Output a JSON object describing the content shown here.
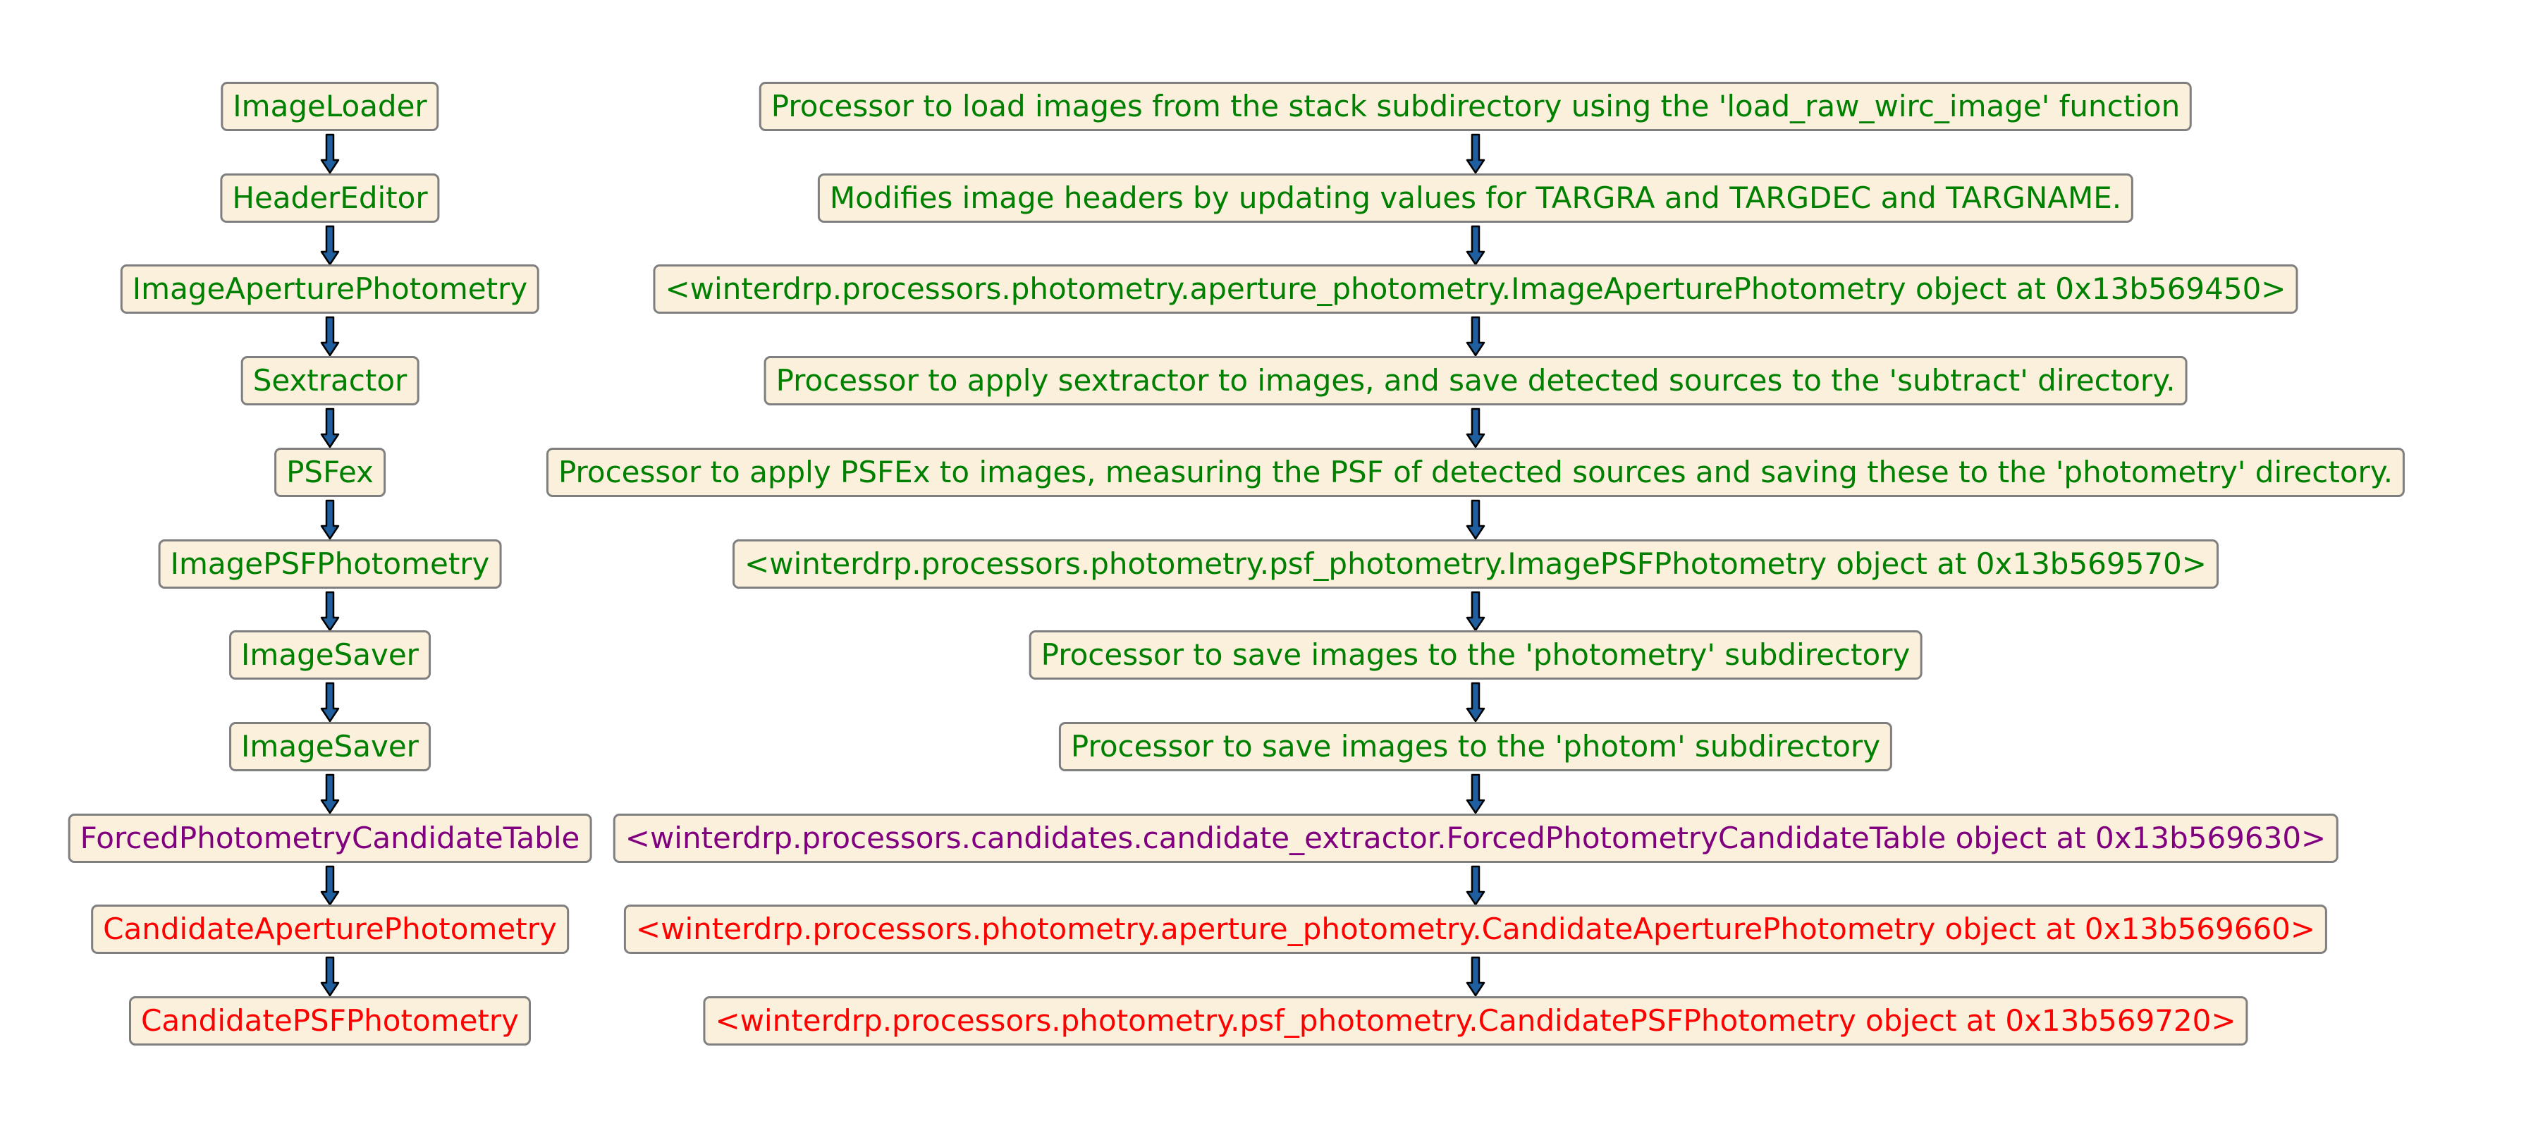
{
  "colors": {
    "green": "#008000",
    "purple": "#800080",
    "red": "#ff0000",
    "node_fill": "#faf0dc",
    "node_border": "#7f7f7f",
    "arrow_fill": "#1f5f9f"
  },
  "steps": [
    {
      "name": "ImageLoader",
      "description": "Processor to load images from the stack subdirectory using the 'load_raw_wirc_image' function",
      "color": "green"
    },
    {
      "name": "HeaderEditor",
      "description": "Modifies image headers by updating values for TARGRA and TARGDEC and TARGNAME.",
      "color": "green"
    },
    {
      "name": "ImageAperturePhotometry",
      "description": "<winterdrp.processors.photometry.aperture_photometry.ImageAperturePhotometry object at 0x13b569450>",
      "color": "green"
    },
    {
      "name": "Sextractor",
      "description": "Processor to apply sextractor to images, and save detected sources to the 'subtract' directory.",
      "color": "green"
    },
    {
      "name": "PSFex",
      "description": "Processor to apply PSFEx to images, measuring the PSF of detected sources and saving these to the 'photometry' directory.",
      "color": "green"
    },
    {
      "name": "ImagePSFPhotometry",
      "description": "<winterdrp.processors.photometry.psf_photometry.ImagePSFPhotometry object at 0x13b569570>",
      "color": "green"
    },
    {
      "name": "ImageSaver",
      "description": "Processor to save images to the 'photometry' subdirectory",
      "color": "green"
    },
    {
      "name": "ImageSaver",
      "description": "Processor to save images to the 'photom' subdirectory",
      "color": "green"
    },
    {
      "name": "ForcedPhotometryCandidateTable",
      "description": "<winterdrp.processors.candidates.candidate_extractor.ForcedPhotometryCandidateTable object at 0x13b569630>",
      "color": "purple"
    },
    {
      "name": "CandidateAperturePhotometry",
      "description": "<winterdrp.processors.photometry.aperture_photometry.CandidateAperturePhotometry object at 0x13b569660>",
      "color": "red"
    },
    {
      "name": "CandidatePSFPhotometry",
      "description": "<winterdrp.processors.photometry.psf_photometry.CandidatePSFPhotometry object at 0x13b569720>",
      "color": "red"
    }
  ]
}
